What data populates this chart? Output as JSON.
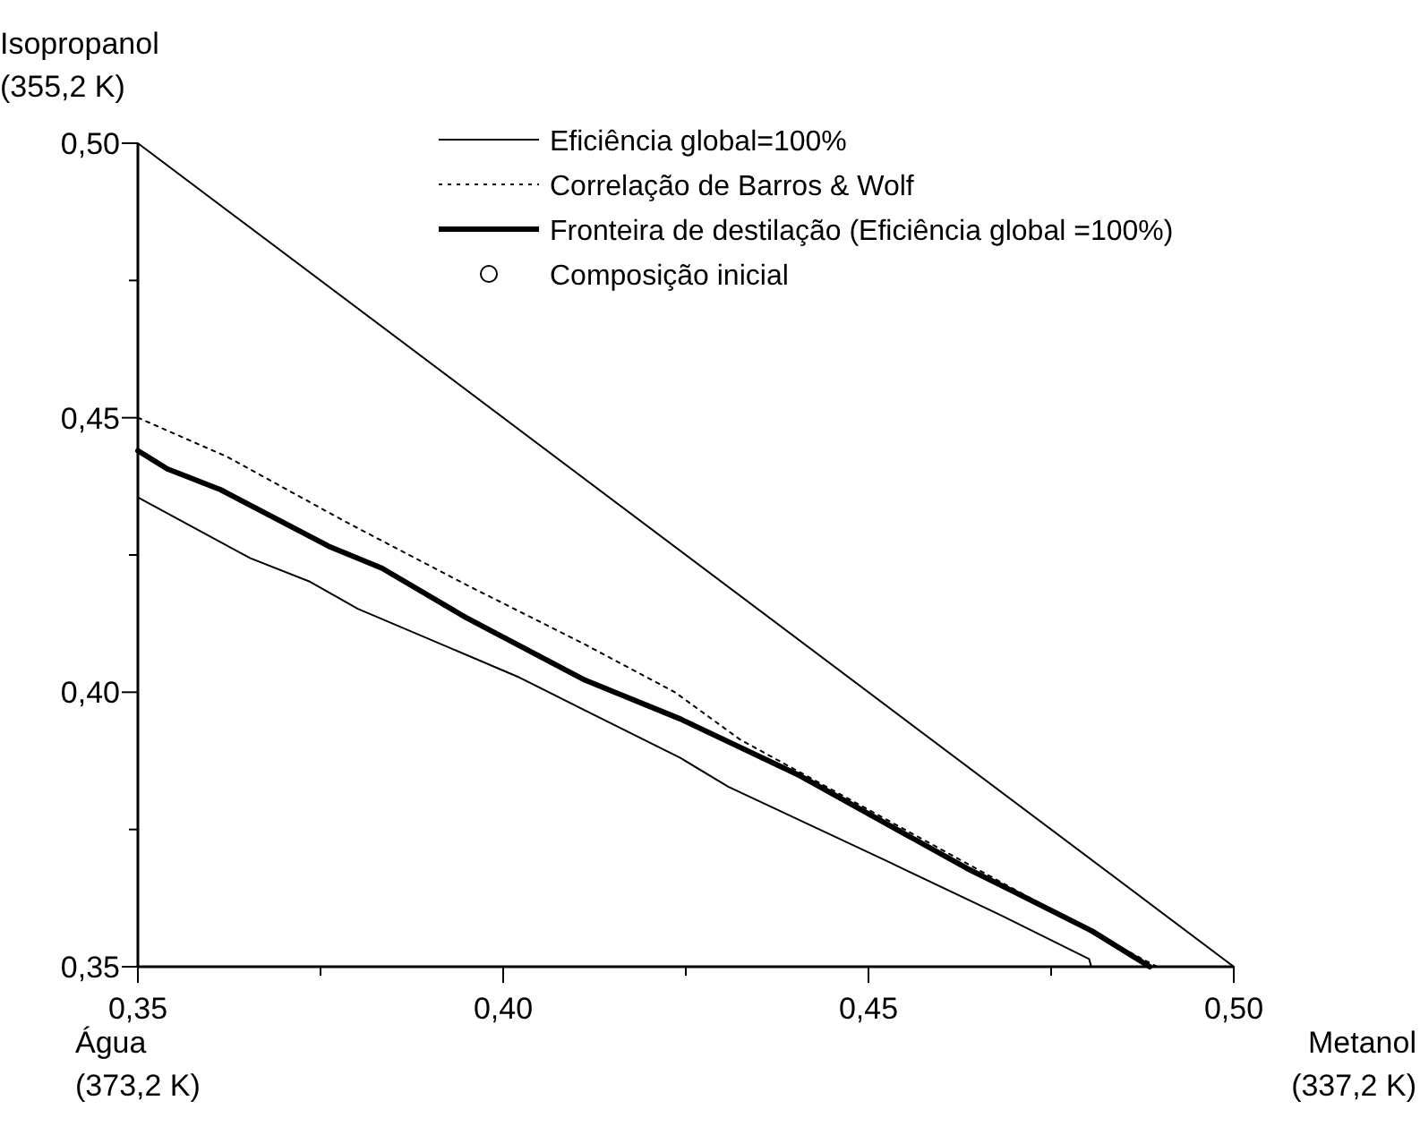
{
  "chart_data": {
    "type": "line",
    "xlim": [
      0.35,
      0.5
    ],
    "ylim": [
      0.35,
      0.5
    ],
    "xticks": [
      {
        "value": 0.35,
        "label": "0,35"
      },
      {
        "value": 0.375,
        "label": null
      },
      {
        "value": 0.4,
        "label": "0,40"
      },
      {
        "value": 0.425,
        "label": null
      },
      {
        "value": 0.45,
        "label": "0,45"
      },
      {
        "value": 0.475,
        "label": null
      },
      {
        "value": 0.5,
        "label": "0,50"
      }
    ],
    "yticks": [
      {
        "value": 0.35,
        "label": "0,35"
      },
      {
        "value": 0.375,
        "label": null
      },
      {
        "value": 0.4,
        "label": "0,40"
      },
      {
        "value": 0.425,
        "label": null
      },
      {
        "value": 0.45,
        "label": "0,45"
      },
      {
        "value": 0.475,
        "label": null
      },
      {
        "value": 0.5,
        "label": "0,50"
      }
    ],
    "grid": false,
    "legend": "top right",
    "marker": "none",
    "annotations": [
      "Isopropanol\n(355,2 K)",
      "Água\n(373,2 K)",
      "Metanol\n(337,2 K)"
    ],
    "series": [
      {
        "color": "#000000",
        "line_style": "solid",
        "x": [
          0.35,
          0.5
        ],
        "values": [
          0.5,
          0.35
        ]
      },
      {
        "name": "Eficiência global=100%",
        "color": "#000000",
        "line_style": "solid",
        "x": [
          0.35,
          0.3654,
          0.3736,
          0.3801,
          0.4022,
          0.4112,
          0.4243,
          0.4308,
          0.4529,
          0.4684,
          0.4802,
          0.4805
        ],
        "values": [
          0.4355,
          0.4244,
          0.4201,
          0.4152,
          0.4027,
          0.3967,
          0.388,
          0.3828,
          0.369,
          0.3592,
          0.3514,
          0.35
        ]
      },
      {
        "name": "Correlação de Barros & Wolf",
        "color": "#000000",
        "line_style": "dotted",
        "x": [
          0.35,
          0.3622,
          0.3785,
          0.3949,
          0.4112,
          0.4235,
          0.4324,
          0.4676,
          0.4872,
          0.4895
        ],
        "values": [
          0.45,
          0.4429,
          0.431,
          0.4196,
          0.4087,
          0.4,
          0.3914,
          0.3658,
          0.3516,
          0.35
        ]
      },
      {
        "name": "Fronteira de destilação (Eficiência global =100%)",
        "color": "#000000",
        "line_style": "solid",
        "x": [
          0.35,
          0.354,
          0.3613,
          0.3761,
          0.3834,
          0.3949,
          0.4112,
          0.4243,
          0.4406,
          0.4635,
          0.47,
          0.4806,
          0.4885
        ],
        "values": [
          0.444,
          0.4407,
          0.4369,
          0.4266,
          0.4226,
          0.4136,
          0.4022,
          0.3951,
          0.3848,
          0.3679,
          0.3636,
          0.3565,
          0.35
        ]
      },
      {
        "name": "Composição inicial",
        "type": "scatter",
        "marker": "circle",
        "color": "#000000"
      }
    ]
  }
}
